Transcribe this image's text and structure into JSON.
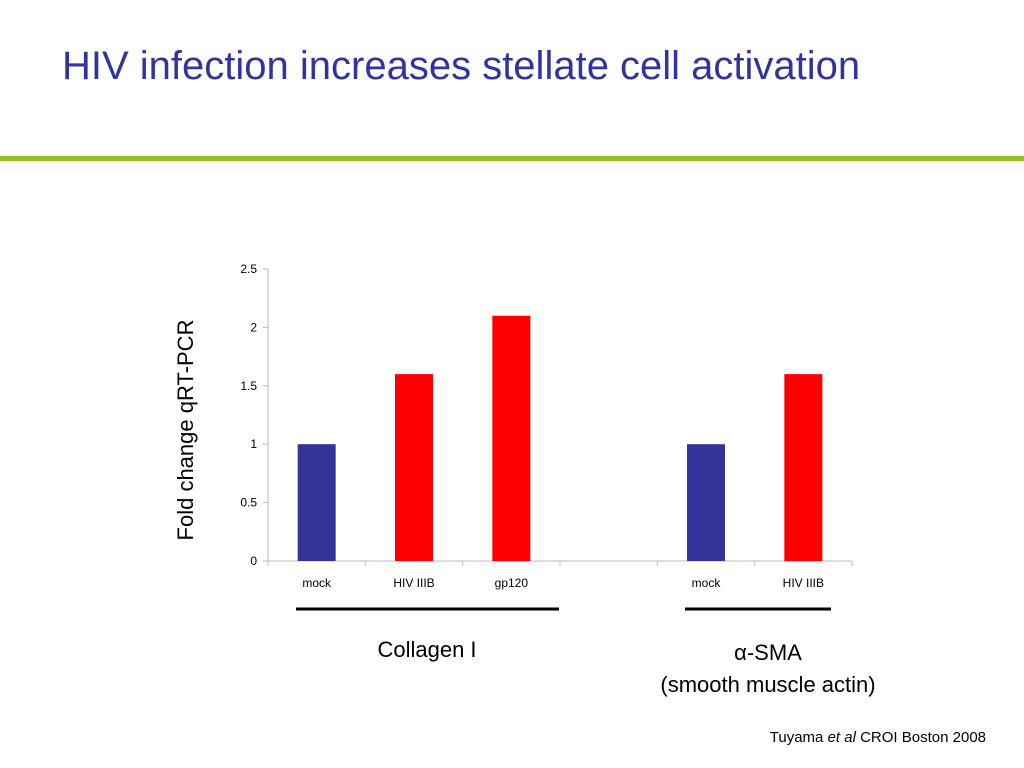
{
  "slide": {
    "title": "HIV infection increases stellate cell activation",
    "accent_color": "#8dc21f",
    "title_color": "#3333a0",
    "citation": {
      "author": "Tuyama",
      "etal": "et al",
      "venue": "CROI Boston 2008"
    }
  },
  "chart_data": {
    "type": "bar",
    "ylabel": "Fold change qRT-PCR",
    "ylim": [
      0,
      2.5
    ],
    "yticks": [
      "0",
      "0.5",
      "1",
      "1.5",
      "2",
      "2.5"
    ],
    "categories": [
      "mock",
      "HIV IIIB",
      "gp120",
      "",
      "mock",
      "HIV IIIB"
    ],
    "values": [
      1.0,
      1.6,
      2.1,
      null,
      1.0,
      1.6
    ],
    "bar_colors": [
      "#333399",
      "#ff0000",
      "#ff0000",
      null,
      "#333399",
      "#ff0000"
    ],
    "grid": false,
    "groups": [
      {
        "label": "Collagen I",
        "category_span": [
          0,
          2
        ]
      },
      {
        "label_symbol": "α",
        "label": "-SMA",
        "sublabel": "(smooth muscle actin)",
        "category_span": [
          4,
          5
        ]
      }
    ]
  }
}
